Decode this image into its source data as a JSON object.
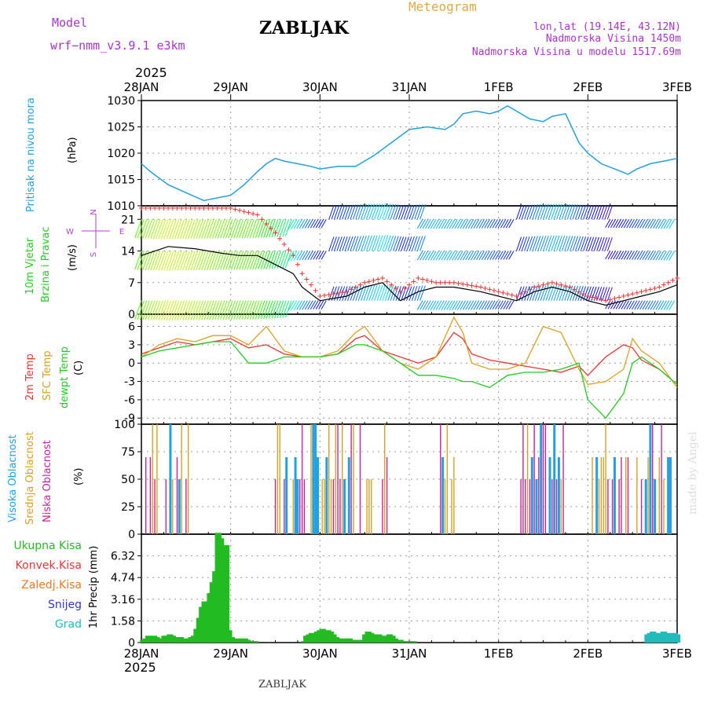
{
  "header": {
    "model_label": "Model",
    "model_name": "wrf−nmm_v3.9.1  e3km",
    "station": "ZABLJAK",
    "meteogram_label": "Meteogram",
    "coords": "lon,lat (19.14E, 43.12N)",
    "altitude": "Nadmorska Visina 1450m",
    "model_altitude": "Nadmorska Visina u modelu 1517.69m",
    "year_top": "2025",
    "year_bottom": "2025",
    "footer_station": "ZABLJAK",
    "watermark": "made by Angel"
  },
  "time_axis": {
    "dates": [
      "28JAN",
      "29JAN",
      "30JAN",
      "31JAN",
      "1FEB",
      "2FEB",
      "3FEB"
    ]
  },
  "colors": {
    "pressure": "#22a0e0",
    "wind_label": "#22cc22",
    "temp2m": "#ee3333",
    "sfc_temp": "#dda020",
    "dewpt": "#22cc22",
    "high_cloud": "#22a0e0",
    "mid_cloud": "#dda020",
    "low_cloud": "#cc2299",
    "total_precip": "#22bb22",
    "conv_precip": "#ee3333",
    "frozen_precip": "#ee7722",
    "snow": "#3333dd",
    "graupel": "#22bbbb",
    "purple_text": "#aa33cc",
    "meteogram_text": "#ddaa44"
  },
  "chart_data": [
    {
      "type": "line",
      "title": "Pritisak na nivou mora",
      "ylabel": "(hPa)",
      "ylim": [
        1010,
        1030
      ],
      "yticks": [
        "1010",
        "1015",
        "1020",
        "1025",
        "1030"
      ],
      "x_days": [
        0,
        0.1,
        0.3,
        0.5,
        0.7,
        0.85,
        1.0,
        1.15,
        1.3,
        1.4,
        1.5,
        1.6,
        1.75,
        1.9,
        2.0,
        2.2,
        2.4,
        2.6,
        2.8,
        3.0,
        3.2,
        3.4,
        3.5,
        3.6,
        3.75,
        3.9,
        4.0,
        4.1,
        4.2,
        4.35,
        4.5,
        4.6,
        4.75,
        4.9,
        5.0,
        5.15,
        5.3,
        5.45,
        5.55,
        5.7,
        5.85,
        6.0
      ],
      "values": [
        1018,
        1016.5,
        1014,
        1012.5,
        1011,
        1011.5,
        1012,
        1014,
        1016.5,
        1018,
        1019,
        1018.5,
        1018,
        1017.5,
        1017,
        1017.5,
        1017.5,
        1019.5,
        1022,
        1024.5,
        1025,
        1024.5,
        1025.5,
        1027.5,
        1028,
        1027.5,
        1028,
        1029,
        1028,
        1026.5,
        1026,
        1027,
        1027.5,
        1022,
        1020,
        1018,
        1017,
        1016,
        1017,
        1018,
        1018.5,
        1019
      ]
    },
    {
      "type": "line",
      "title": "10m Vjetar Brzina i Pravac",
      "ylabel": "(m/s)",
      "ylim": [
        0,
        24
      ],
      "yticks": [
        "0",
        "7",
        "14",
        "21"
      ],
      "compass": {
        "N": "N",
        "S": "S",
        "E": "E",
        "W": "W"
      },
      "series": [
        {
          "name": "speed",
          "x_days": [
            0,
            0.3,
            0.6,
            0.9,
            1.1,
            1.3,
            1.5,
            1.7,
            1.8,
            2.0,
            2.3,
            2.5,
            2.7,
            2.9,
            3.1,
            3.3,
            3.5,
            3.8,
            4.0,
            4.2,
            4.4,
            4.6,
            4.8,
            5.0,
            5.2,
            5.4,
            5.6,
            5.8,
            6.0
          ],
          "values": [
            13,
            15,
            14.5,
            13.5,
            13,
            13,
            11,
            9,
            6,
            3,
            4,
            6,
            7,
            3,
            5,
            6,
            6,
            5,
            4,
            3,
            5,
            6,
            5,
            3,
            2,
            3,
            4,
            5,
            6.5
          ]
        },
        {
          "name": "gust",
          "x_days": [
            0,
            0.3,
            0.6,
            0.9,
            1.1,
            1.3,
            1.5,
            1.7,
            1.8,
            2.0,
            2.3,
            2.5,
            2.7,
            2.9,
            3.1,
            3.3,
            3.5,
            3.8,
            4.0,
            4.2,
            4.4,
            4.6,
            4.8,
            5.0,
            5.2,
            5.4,
            5.6,
            5.8,
            6.0
          ],
          "values": [
            24,
            24,
            24,
            24,
            23,
            22,
            18,
            13,
            9,
            4,
            5,
            7,
            8,
            5,
            8,
            7,
            7,
            6,
            5,
            4,
            6,
            7,
            6,
            4,
            3,
            4,
            5,
            6,
            8
          ]
        }
      ]
    },
    {
      "type": "line",
      "title": "2m Temp / SFC Temp / dewpt Temp",
      "ylabel": "(C)",
      "ylim": [
        -10,
        8
      ],
      "yticks": [
        "-9",
        "-6",
        "-3",
        "0",
        "3",
        "6"
      ],
      "series": [
        {
          "name": "2m Temp",
          "x_days": [
            0,
            0.2,
            0.4,
            0.6,
            0.8,
            1.0,
            1.2,
            1.4,
            1.6,
            1.8,
            2.0,
            2.2,
            2.4,
            2.5,
            2.7,
            2.9,
            3.1,
            3.3,
            3.5,
            3.6,
            3.7,
            3.9,
            4.1,
            4.3,
            4.5,
            4.7,
            4.9,
            5.0,
            5.2,
            5.4,
            5.5,
            5.6,
            5.8,
            6.0
          ],
          "values": [
            1.5,
            2.5,
            3.5,
            3,
            3.5,
            4,
            2.5,
            3,
            1.5,
            1,
            1,
            1.5,
            4,
            4.5,
            2,
            1,
            0,
            1,
            5,
            4,
            1.5,
            0.5,
            0,
            -0.5,
            -1,
            -1.5,
            -0.5,
            -2,
            1,
            3,
            2.5,
            0.5,
            -1,
            -3.5
          ]
        },
        {
          "name": "SFC Temp",
          "x_days": [
            0,
            0.2,
            0.4,
            0.6,
            0.8,
            1.0,
            1.2,
            1.4,
            1.6,
            1.8,
            2.0,
            2.2,
            2.4,
            2.5,
            2.7,
            2.9,
            3.1,
            3.3,
            3.5,
            3.6,
            3.7,
            3.9,
            4.1,
            4.3,
            4.5,
            4.7,
            4.9,
            5.0,
            5.2,
            5.4,
            5.5,
            5.6,
            5.8,
            6.0
          ],
          "values": [
            1,
            3,
            4,
            3.5,
            4.5,
            4.5,
            3,
            6,
            2,
            1,
            1,
            2,
            5,
            6,
            2,
            0,
            -1,
            1,
            7.5,
            5,
            0,
            -1,
            -1,
            0,
            6,
            5,
            -1,
            -3.5,
            -3,
            -1,
            4,
            2,
            0,
            -4
          ]
        },
        {
          "name": "dewpt Temp",
          "x_days": [
            0,
            0.2,
            0.4,
            0.6,
            0.8,
            1.0,
            1.2,
            1.4,
            1.6,
            1.8,
            2.0,
            2.2,
            2.4,
            2.5,
            2.7,
            2.9,
            3.1,
            3.3,
            3.5,
            3.6,
            3.7,
            3.9,
            4.1,
            4.3,
            4.5,
            4.7,
            4.9,
            5.0,
            5.2,
            5.4,
            5.5,
            5.6,
            5.8,
            6.0
          ],
          "values": [
            1,
            2,
            2.5,
            3,
            3.5,
            3.5,
            0,
            0,
            1,
            1,
            1,
            1.5,
            3,
            3,
            2,
            0,
            -2,
            -2,
            -2.5,
            -3,
            -3,
            -4,
            -2,
            -1.5,
            -1.5,
            -1,
            0,
            -6,
            -9,
            -5,
            0,
            1,
            -1,
            -3.5
          ]
        }
      ]
    },
    {
      "type": "bar",
      "title": "Visoka / Srednja / Niska Oblacnost",
      "ylabel": "(%)",
      "ylim": [
        0,
        100
      ],
      "yticks": [
        "0",
        "25",
        "50",
        "75",
        "100"
      ],
      "cloud_periods_days": [
        [
          0.05,
          0.55
        ],
        [
          1.5,
          2.75
        ],
        [
          3.35,
          3.5
        ],
        [
          4.25,
          4.8
        ],
        [
          5.05,
          5.95
        ]
      ],
      "cloud_values": [
        0,
        50,
        70,
        100
      ]
    },
    {
      "type": "bar",
      "title": "1hr Precip",
      "ylabel": "1hr Precip (mm)",
      "ylim": [
        0,
        7.9
      ],
      "yticks": [
        "0",
        "1.58",
        "3.16",
        "4.74",
        "6.32"
      ],
      "legend": [
        "Ukupna Kisa",
        "Konvek.Kisa",
        "Zaledj.Kisa",
        "Snijeg",
        "Grad"
      ],
      "x_days": [
        0.0,
        0.03,
        0.06,
        0.09,
        0.12,
        0.15,
        0.18,
        0.21,
        0.24,
        0.27,
        0.3,
        0.33,
        0.36,
        0.39,
        0.42,
        0.45,
        0.48,
        0.51,
        0.54,
        0.57,
        0.6,
        0.63,
        0.66,
        0.69,
        0.72,
        0.75,
        0.78,
        0.81,
        0.84,
        0.87,
        0.9,
        0.93,
        0.96,
        0.99,
        1.02,
        1.05,
        1.08,
        1.11,
        1.14,
        1.17,
        1.2,
        1.23,
        1.26,
        1.8,
        1.83,
        1.86,
        1.89,
        1.92,
        1.95,
        1.98,
        2.01,
        2.04,
        2.07,
        2.1,
        2.13,
        2.16,
        2.19,
        2.22,
        2.25,
        2.28,
        2.31,
        2.34,
        2.37,
        2.4,
        2.43,
        2.46,
        2.49,
        2.52,
        2.55,
        2.58,
        2.61,
        2.64,
        2.67,
        2.7,
        2.73,
        2.76,
        2.79,
        2.82,
        2.85,
        2.88,
        2.91,
        2.94,
        2.97,
        3.0,
        3.03,
        5.65,
        5.68,
        5.71,
        5.74,
        5.77,
        5.8,
        5.83,
        5.86,
        5.89,
        5.92,
        5.95,
        5.98
      ],
      "values": [
        0.2,
        0.3,
        0.5,
        0.4,
        0.5,
        0.4,
        0.3,
        0.3,
        0.5,
        0.5,
        0.6,
        0.5,
        0.4,
        0.3,
        0.4,
        0.2,
        0.3,
        0.3,
        0.4,
        0.5,
        1.0,
        1.8,
        2.6,
        3.0,
        2.8,
        3.6,
        4.4,
        5.2,
        8.0,
        7.6,
        6.6,
        7.1,
        0.9,
        0.4,
        0.3,
        0.2,
        0.3,
        0.2,
        0.3,
        0.2,
        0.1,
        0.1,
        0.1,
        0.1,
        0.5,
        0.6,
        0.7,
        0.6,
        0.8,
        0.9,
        1.0,
        0.7,
        0.9,
        0.8,
        0.6,
        0.4,
        0.3,
        0.2,
        0.3,
        0.2,
        0.3,
        0.2,
        0.2,
        0.1,
        0.2,
        0.1,
        0.6,
        0.8,
        0.7,
        0.6,
        0.5,
        0.6,
        0.5,
        0.4,
        0.5,
        0.6,
        0.5,
        0.3,
        0.2,
        0.2,
        0.1,
        0.1,
        0.1,
        0.1,
        0.1,
        0.6,
        0.7,
        0.8,
        0.7,
        0.6,
        0.7,
        0.8,
        0.6,
        0.7,
        0.6,
        0.7,
        0.6
      ]
    }
  ]
}
